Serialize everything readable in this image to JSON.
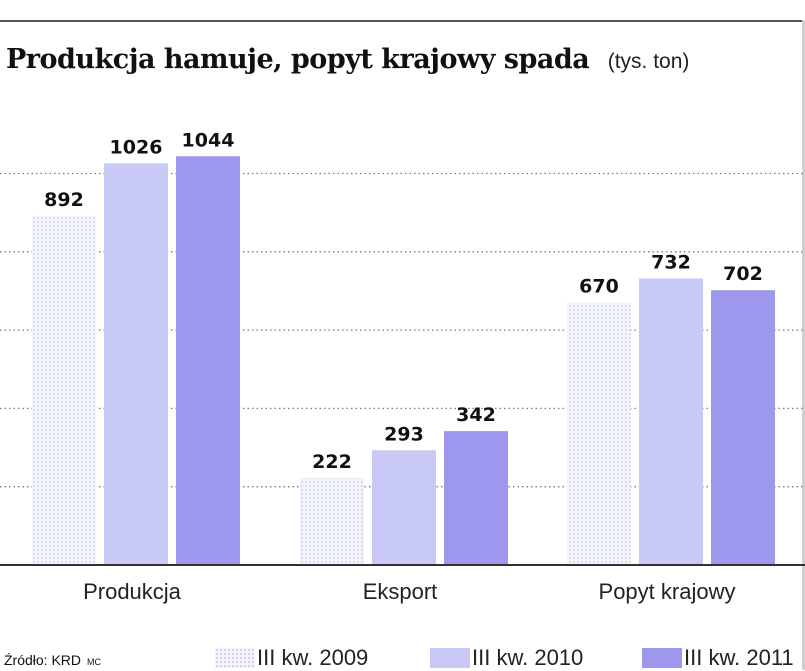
{
  "header": {
    "title": "Produkcja hamuje, popyt krajowy spada",
    "unit": "(tys. ton)"
  },
  "footer": {
    "source": "Źródło: KRD",
    "credit": "MC"
  },
  "colors": {
    "series_2009": "#e4e4f6",
    "series_2010": "#c9c9f6",
    "series_2011": "#9d98ee",
    "grid": "#7a7a7a",
    "axis": "#333333"
  },
  "chart_data": {
    "type": "bar",
    "title": "Produkcja hamuje, popyt krajowy spada",
    "unit": "(tys. ton)",
    "categories": [
      "Produkcja",
      "Eksport",
      "Popyt krajowy"
    ],
    "series": [
      {
        "name": "III kw. 2009",
        "values": [
          892,
          222,
          670
        ],
        "pattern": "dotted"
      },
      {
        "name": "III kw. 2010",
        "values": [
          1026,
          293,
          732
        ]
      },
      {
        "name": "III kw. 2011",
        "values": [
          1044,
          342,
          702
        ]
      }
    ],
    "ylim": [
      0,
      1100
    ],
    "gridlines": [
      200,
      400,
      600,
      800,
      1000
    ],
    "grid": true,
    "y_tick_labels_shown": false,
    "legend": "bottom"
  }
}
